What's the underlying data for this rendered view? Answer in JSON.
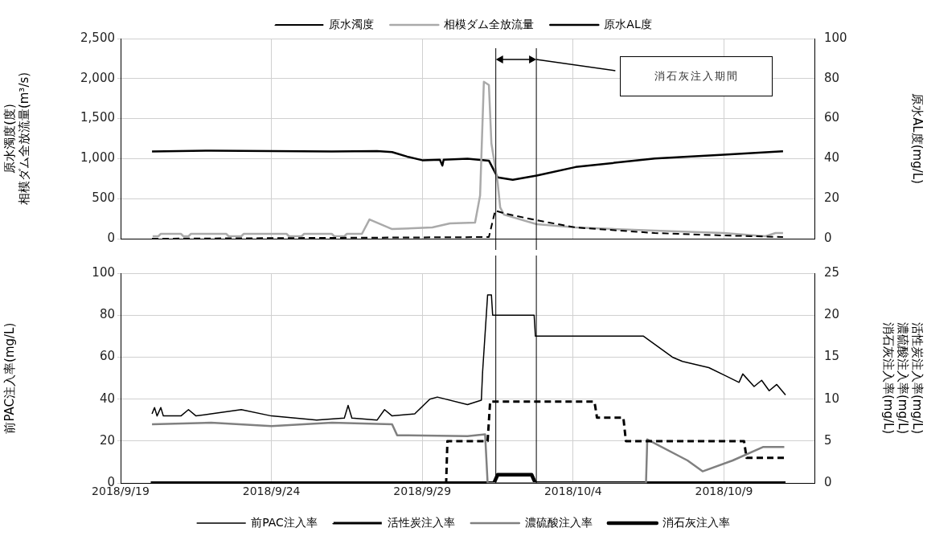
{
  "chart_data": [
    {
      "type": "line",
      "legend": "top",
      "grid": true,
      "marker": "none",
      "tick_labels": "y",
      "ylabel": "原水濁度(度)\n相模ダム全放流量(m³/s)",
      "y2label": "原水AL度(mg/L)",
      "xlim": [
        "2018-09-19",
        "2018-10-12"
      ],
      "xticks": [
        {
          "value": "2018-09-19",
          "label": null
        },
        {
          "value": "2018-09-24",
          "label": null
        },
        {
          "value": "2018-09-29",
          "label": null
        },
        {
          "value": "2018-10-04",
          "label": null
        },
        {
          "value": "2018-10-09",
          "label": null
        }
      ],
      "ylim": [
        0,
        2500
      ],
      "yticks": [
        0,
        500,
        {
          "value": 1000,
          "label": "1,000"
        },
        {
          "value": 1500,
          "label": "1,500"
        },
        {
          "value": 2000,
          "label": "2,000"
        },
        {
          "value": 2500,
          "label": "2,500"
        }
      ],
      "y2lim": [
        0,
        100
      ],
      "y2ticks": [
        0,
        20,
        40,
        60,
        80,
        100
      ],
      "ref_lines": [
        {
          "axis": "x",
          "value": "2018-10-01T10:30",
          "color": "#000000"
        },
        {
          "axis": "x",
          "value": "2018-10-02T18:45",
          "color": "#000000"
        }
      ],
      "annotations": [
        "消石灰注入期間"
      ],
      "series": [
        {
          "name": "原水濁度",
          "type": "line",
          "color": "#000000",
          "line_style": "dashed",
          "x": [
            "2018-09-20T01:00",
            "2018-10-01T05:00",
            "2018-10-01T10:00",
            "2018-10-01T19:00",
            "2018-10-02T19:00",
            "2018-10-04T02:00",
            "2018-10-06T17:00",
            "2018-10-09T00:00",
            "2018-10-10T23:00"
          ],
          "values": [
            0,
            20,
            350,
            310,
            230,
            140,
            70,
            40,
            20
          ]
        },
        {
          "name": "相模ダム全放流量",
          "type": "line",
          "color": "#aaaaaa",
          "x": [
            "2018-09-20T01:30",
            "2018-09-20T06:00",
            "2018-09-20T08:00",
            "2018-09-21T00:00",
            "2018-09-21T02:00",
            "2018-09-21T06:00",
            "2018-09-21T08:00",
            "2018-09-22T12:00",
            "2018-09-22T14:00",
            "2018-09-23T00:00",
            "2018-09-23T02:00",
            "2018-09-24T12:00",
            "2018-09-24T14:00",
            "2018-09-25T00:00",
            "2018-09-25T02:00",
            "2018-09-26T00:00",
            "2018-09-26T02:00",
            "2018-09-26T10:00",
            "2018-09-26T12:00",
            "2018-09-27T00:00",
            "2018-09-27T06:00",
            "2018-09-27T12:00",
            "2018-09-28T00:00",
            "2018-09-29T08:00",
            "2018-09-29T22:00",
            "2018-09-30T18:00",
            "2018-09-30T22:00",
            "2018-10-01T01:00",
            "2018-10-01T05:00",
            "2018-10-01T07:00",
            "2018-10-01T12:00",
            "2018-10-01T14:00",
            "2018-10-01T17:00",
            "2018-10-02T19:00",
            "2018-10-04T02:00",
            "2018-10-06T17:00",
            "2018-10-09T00:00",
            "2018-10-10T09:00",
            "2018-10-10T17:00",
            "2018-10-10T23:00"
          ],
          "values": [
            30,
            30,
            60,
            60,
            30,
            30,
            60,
            60,
            30,
            30,
            60,
            60,
            30,
            30,
            60,
            60,
            30,
            30,
            60,
            60,
            240,
            200,
            120,
            140,
            190,
            200,
            540,
            1960,
            1920,
            1190,
            700,
            390,
            300,
            180,
            140,
            100,
            70,
            30,
            70,
            70
          ]
        },
        {
          "name": "原水AL度",
          "type": "line",
          "color": "#000000",
          "axis": "y2",
          "x": [
            "2018-09-20T01:00",
            "2018-09-22T00:00",
            "2018-09-24T00:00",
            "2018-09-26T00:00",
            "2018-09-27T12:00",
            "2018-09-28T00:00",
            "2018-09-28T12:00",
            "2018-09-29T00:00",
            "2018-09-29T14:00",
            "2018-09-29T16:00",
            "2018-09-29T17:00",
            "2018-09-30T12:00",
            "2018-10-01T05:00",
            "2018-10-01T12:00",
            "2018-10-02T00:00",
            "2018-10-02T19:00",
            "2018-10-04T02:00",
            "2018-10-06T17:00",
            "2018-10-09T00:00",
            "2018-10-10T23:00"
          ],
          "values": [
            43.6,
            44,
            43.8,
            43.6,
            43.8,
            43.3,
            41,
            39.2,
            39.5,
            36.5,
            39.5,
            40,
            39,
            30.6,
            29.4,
            31.5,
            35.8,
            40.1,
            42,
            43.7
          ]
        }
      ]
    },
    {
      "type": "line",
      "legend": "bottom",
      "grid": true,
      "marker": "none",
      "ylabel": "前PAC注入率(mg/L)",
      "y2label": "活性炭注入率(mg/L)\n濃硫酸注入率(mg/L)\n消石灰注入率(mg/L)",
      "xlim": [
        "2018-09-19",
        "2018-10-12"
      ],
      "xticks": [
        {
          "value": "2018-09-19",
          "label": "2018/9/19"
        },
        {
          "value": "2018-09-24",
          "label": "2018/9/24"
        },
        {
          "value": "2018-09-29",
          "label": "2018/9/29"
        },
        {
          "value": "2018-10-04",
          "label": "2018/10/4"
        },
        {
          "value": "2018-10-09",
          "label": "2018/10/9"
        }
      ],
      "ylim": [
        0,
        100
      ],
      "yticks": [
        0,
        20,
        40,
        60,
        80,
        100
      ],
      "y2lim": [
        0,
        25
      ],
      "y2ticks": [
        0,
        5,
        10,
        15,
        20,
        25
      ],
      "ref_lines": [
        {
          "axis": "x",
          "value": "2018-10-01T10:30",
          "color": "#000000"
        },
        {
          "axis": "x",
          "value": "2018-10-02T18:45",
          "color": "#000000"
        }
      ],
      "series": [
        {
          "name": "前PAC注入率",
          "type": "line",
          "color": "#000000",
          "x": [
            "2018-09-20T01:00",
            "2018-09-20T03:00",
            "2018-09-20T05:00",
            "2018-09-20T08:00",
            "2018-09-20T10:00",
            "2018-09-21T00:00",
            "2018-09-21T06:00",
            "2018-09-21T12:00",
            "2018-09-22T00:00",
            "2018-09-23T00:00",
            "2018-09-24T00:00",
            "2018-09-25T12:00",
            "2018-09-26T10:00",
            "2018-09-26T13:00",
            "2018-09-26T16:00",
            "2018-09-27T12:00",
            "2018-09-27T18:00",
            "2018-09-28T00:00",
            "2018-09-28T18:00",
            "2018-09-29T06:00",
            "2018-09-29T12:00",
            "2018-09-30T12:00",
            "2018-09-30T23:00",
            "2018-10-01T00:00",
            "2018-10-01T04:00",
            "2018-10-01T07:00",
            "2018-10-01T08:00",
            "2018-10-02T17:00",
            "2018-10-02T18:00",
            "2018-10-06T08:00",
            "2018-10-07T07:00",
            "2018-10-07T15:00",
            "2018-10-08T12:00",
            "2018-10-09T00:00",
            "2018-10-09T12:00",
            "2018-10-09T15:00",
            "2018-10-10T00:00",
            "2018-10-10T06:00",
            "2018-10-10T12:00",
            "2018-10-10T18:00",
            "2018-10-11T01:00"
          ],
          "values": [
            33,
            36,
            32,
            36,
            32,
            32,
            35,
            32,
            33,
            35,
            32,
            30,
            31,
            37,
            31,
            30,
            35,
            32,
            33,
            40,
            41,
            37.4,
            39.5,
            53,
            89.7,
            89.7,
            80,
            80,
            70,
            70,
            60,
            58,
            55,
            51.5,
            48,
            52,
            46,
            49,
            44,
            47,
            42
          ]
        },
        {
          "name": "活性炭注入率",
          "type": "line",
          "color": "#000000",
          "line_style": "dashed",
          "axis": "y2",
          "x": [
            "2018-09-20T01:00",
            "2018-09-29T19:00",
            "2018-09-29T20:00",
            "2018-10-01T04:00",
            "2018-10-01T06:00",
            "2018-10-04T17:00",
            "2018-10-04T19:00",
            "2018-10-05T16:00",
            "2018-10-05T18:00",
            "2018-10-09T16:00",
            "2018-10-09T18:00",
            "2018-10-11T00:00"
          ],
          "values": [
            0,
            0,
            5,
            5,
            9.7,
            9.7,
            7.8,
            7.8,
            5,
            5,
            3,
            3
          ]
        },
        {
          "name": "濃硫酸注入率",
          "type": "line",
          "color": "#808080",
          "axis": "y2",
          "x": [
            "2018-09-20T01:00",
            "2018-09-22T00:00",
            "2018-09-24T00:00",
            "2018-09-26T00:00",
            "2018-09-28T00:00",
            "2018-09-28T04:00",
            "2018-09-30T12:00",
            "2018-10-01T02:00",
            "2018-10-01T04:00",
            "2018-10-06T10:00",
            "2018-10-06T11:00",
            "2018-10-07T19:00",
            "2018-10-08T07:00",
            "2018-10-09T07:00",
            "2018-10-10T07:00",
            "2018-10-11T00:00"
          ],
          "values": [
            7,
            7.2,
            6.8,
            7.2,
            7,
            5.7,
            5.6,
            5.8,
            0,
            0,
            5.2,
            2.7,
            1.4,
            2.7,
            4.3,
            4.3
          ]
        },
        {
          "name": "消石灰注入率",
          "type": "line",
          "color": "#000000",
          "axis": "y2",
          "x": [
            "2018-09-20T00:00",
            "2018-10-01T09:00",
            "2018-10-01T12:00",
            "2018-10-02T15:00",
            "2018-10-02T18:00",
            "2018-10-11T01:00"
          ],
          "values": [
            0,
            0,
            1,
            1,
            0,
            0
          ]
        }
      ]
    }
  ]
}
